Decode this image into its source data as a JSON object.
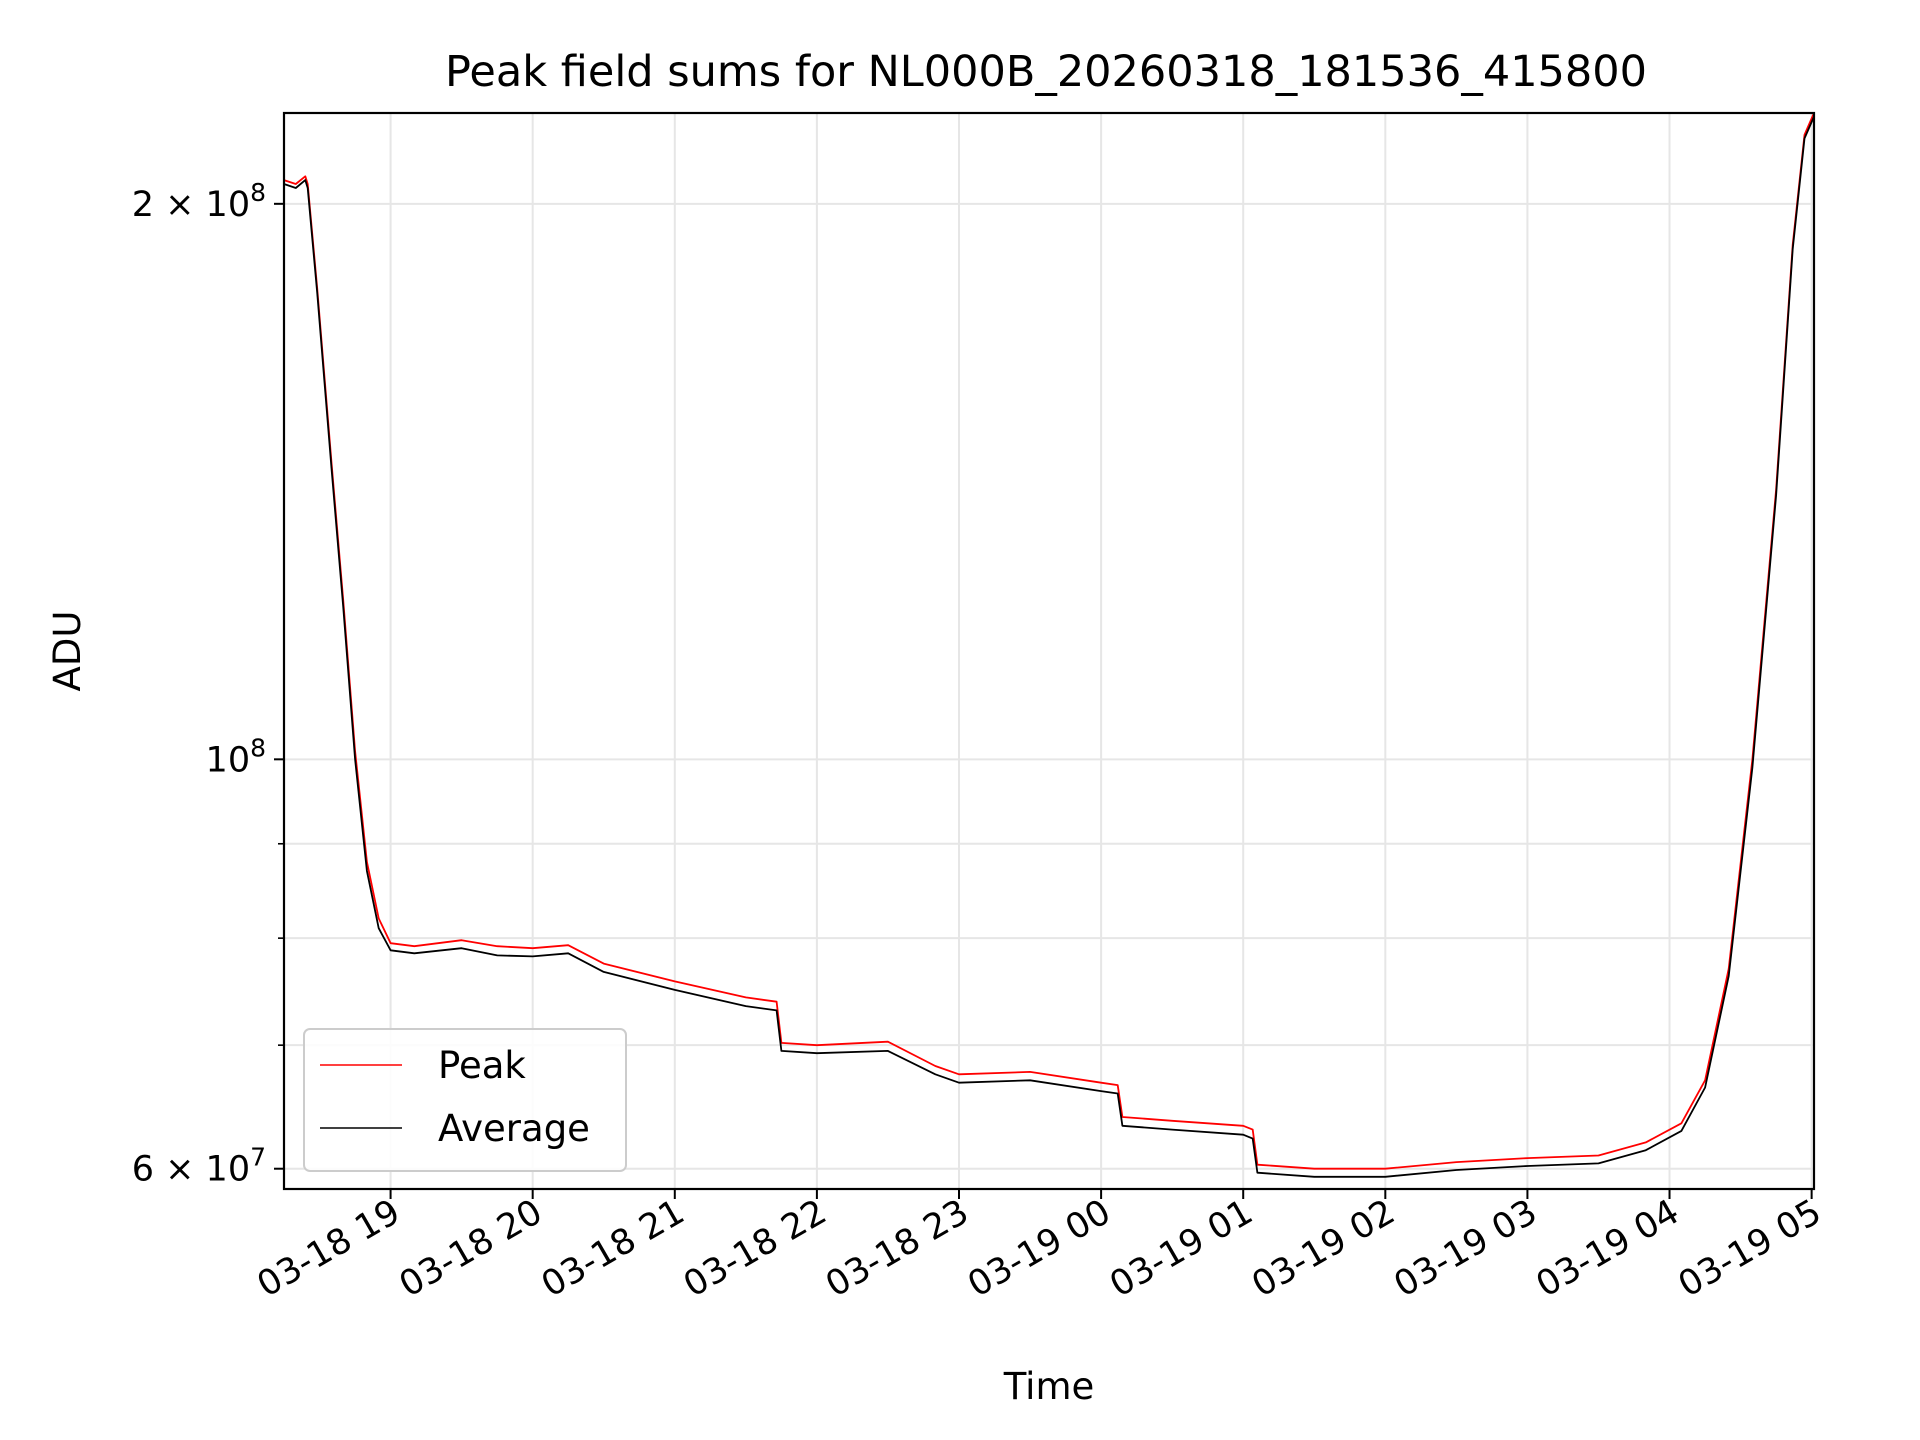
{
  "chart_data": {
    "type": "line",
    "title": "Peak field sums for NL000B_20260318_181536_415800",
    "xlabel": "Time",
    "ylabel": "ADU",
    "yscale": "log",
    "xlim": [
      "2026-03-18 18:15",
      "2026-03-19 05:01"
    ],
    "ylim": [
      58500000,
      224000000
    ],
    "grid": true,
    "legend": "lower-left",
    "x_ticks": [
      {
        "t": "2026-03-18 19:00",
        "label": "03-18 19"
      },
      {
        "t": "2026-03-18 20:00",
        "label": "03-18 20"
      },
      {
        "t": "2026-03-18 21:00",
        "label": "03-18 21"
      },
      {
        "t": "2026-03-18 22:00",
        "label": "03-18 22"
      },
      {
        "t": "2026-03-18 23:00",
        "label": "03-18 23"
      },
      {
        "t": "2026-03-19 00:00",
        "label": "03-19 00"
      },
      {
        "t": "2026-03-19 01:00",
        "label": "03-19 01"
      },
      {
        "t": "2026-03-19 02:00",
        "label": "03-19 02"
      },
      {
        "t": "2026-03-19 03:00",
        "label": "03-19 03"
      },
      {
        "t": "2026-03-19 04:00",
        "label": "03-19 04"
      },
      {
        "t": "2026-03-19 05:00",
        "label": "03-19 05"
      }
    ],
    "y_ticks_major": [
      {
        "value": 60000000,
        "mant": "6 × 10",
        "exp": "7"
      },
      {
        "value": 100000000,
        "mant": "10",
        "exp": "8"
      },
      {
        "value": 200000000,
        "mant": "2 × 10",
        "exp": "8"
      }
    ],
    "y_ticks_minor": [
      70000000,
      80000000,
      90000000
    ],
    "series": [
      {
        "name": "Peak",
        "color": "#ff0000",
        "points": [
          [
            "2026-03-18 18:15",
            206000000
          ],
          [
            "2026-03-18 18:20",
            205000000
          ],
          [
            "2026-03-18 18:24",
            207000000
          ],
          [
            "2026-03-18 18:25",
            205000000
          ],
          [
            "2026-03-18 18:29",
            180000000
          ],
          [
            "2026-03-18 18:35",
            145000000
          ],
          [
            "2026-03-18 18:40",
            122000000
          ],
          [
            "2026-03-18 18:45",
            101000000
          ],
          [
            "2026-03-18 18:50",
            88000000
          ],
          [
            "2026-03-18 18:55",
            82000000
          ],
          [
            "2026-03-18 19:00",
            79500000
          ],
          [
            "2026-03-18 19:10",
            79200000
          ],
          [
            "2026-03-18 19:30",
            79800000
          ],
          [
            "2026-03-18 19:45",
            79200000
          ],
          [
            "2026-03-18 20:00",
            79000000
          ],
          [
            "2026-03-18 20:15",
            79300000
          ],
          [
            "2026-03-18 20:30",
            77500000
          ],
          [
            "2026-03-18 21:00",
            75800000
          ],
          [
            "2026-03-18 21:30",
            74300000
          ],
          [
            "2026-03-18 21:43",
            73900000
          ],
          [
            "2026-03-18 21:45",
            70200000
          ],
          [
            "2026-03-18 22:00",
            70000000
          ],
          [
            "2026-03-18 22:30",
            70300000
          ],
          [
            "2026-03-18 22:50",
            68200000
          ],
          [
            "2026-03-18 23:00",
            67500000
          ],
          [
            "2026-03-18 23:30",
            67700000
          ],
          [
            "2026-03-19 00:00",
            66800000
          ],
          [
            "2026-03-19 00:07",
            66600000
          ],
          [
            "2026-03-19 00:09",
            64000000
          ],
          [
            "2026-03-19 00:30",
            63700000
          ],
          [
            "2026-03-19 01:00",
            63300000
          ],
          [
            "2026-03-19 01:04",
            63000000
          ],
          [
            "2026-03-19 01:06",
            60300000
          ],
          [
            "2026-03-19 01:30",
            60000000
          ],
          [
            "2026-03-19 02:00",
            60000000
          ],
          [
            "2026-03-19 02:30",
            60500000
          ],
          [
            "2026-03-19 03:00",
            60800000
          ],
          [
            "2026-03-19 03:30",
            61000000
          ],
          [
            "2026-03-19 03:50",
            62000000
          ],
          [
            "2026-03-19 04:05",
            63500000
          ],
          [
            "2026-03-19 04:15",
            67000000
          ],
          [
            "2026-03-19 04:25",
            77000000
          ],
          [
            "2026-03-19 04:35",
            100000000
          ],
          [
            "2026-03-19 04:45",
            140000000
          ],
          [
            "2026-03-19 04:52",
            190000000
          ],
          [
            "2026-03-19 04:57",
            218000000
          ],
          [
            "2026-03-19 05:01",
            224000000
          ]
        ]
      },
      {
        "name": "Average",
        "color": "#000000",
        "points": [
          [
            "2026-03-18 18:15",
            205000000
          ],
          [
            "2026-03-18 18:20",
            204000000
          ],
          [
            "2026-03-18 18:24",
            206000000
          ],
          [
            "2026-03-18 18:25",
            204000000
          ],
          [
            "2026-03-18 18:29",
            179000000
          ],
          [
            "2026-03-18 18:35",
            144000000
          ],
          [
            "2026-03-18 18:40",
            121000000
          ],
          [
            "2026-03-18 18:45",
            100000000
          ],
          [
            "2026-03-18 18:50",
            87000000
          ],
          [
            "2026-03-18 18:55",
            81000000
          ],
          [
            "2026-03-18 19:00",
            78800000
          ],
          [
            "2026-03-18 19:10",
            78500000
          ],
          [
            "2026-03-18 19:30",
            79000000
          ],
          [
            "2026-03-18 19:45",
            78300000
          ],
          [
            "2026-03-18 20:00",
            78200000
          ],
          [
            "2026-03-18 20:15",
            78500000
          ],
          [
            "2026-03-18 20:30",
            76700000
          ],
          [
            "2026-03-18 21:00",
            75000000
          ],
          [
            "2026-03-18 21:30",
            73500000
          ],
          [
            "2026-03-18 21:43",
            73100000
          ],
          [
            "2026-03-18 21:45",
            69500000
          ],
          [
            "2026-03-18 22:00",
            69300000
          ],
          [
            "2026-03-18 22:30",
            69500000
          ],
          [
            "2026-03-18 22:50",
            67500000
          ],
          [
            "2026-03-18 23:00",
            66800000
          ],
          [
            "2026-03-18 23:30",
            67000000
          ],
          [
            "2026-03-19 00:00",
            66100000
          ],
          [
            "2026-03-19 00:07",
            65900000
          ],
          [
            "2026-03-19 00:09",
            63300000
          ],
          [
            "2026-03-19 00:30",
            63000000
          ],
          [
            "2026-03-19 01:00",
            62600000
          ],
          [
            "2026-03-19 01:04",
            62300000
          ],
          [
            "2026-03-19 01:06",
            59700000
          ],
          [
            "2026-03-19 01:30",
            59400000
          ],
          [
            "2026-03-19 02:00",
            59400000
          ],
          [
            "2026-03-19 02:30",
            59900000
          ],
          [
            "2026-03-19 03:00",
            60200000
          ],
          [
            "2026-03-19 03:30",
            60400000
          ],
          [
            "2026-03-19 03:50",
            61400000
          ],
          [
            "2026-03-19 04:05",
            62900000
          ],
          [
            "2026-03-19 04:15",
            66400000
          ],
          [
            "2026-03-19 04:25",
            76300000
          ],
          [
            "2026-03-19 04:35",
            99000000
          ],
          [
            "2026-03-19 04:45",
            139000000
          ],
          [
            "2026-03-19 04:52",
            189000000
          ],
          [
            "2026-03-19 04:57",
            217000000
          ],
          [
            "2026-03-19 05:01",
            223000000
          ]
        ]
      }
    ]
  }
}
